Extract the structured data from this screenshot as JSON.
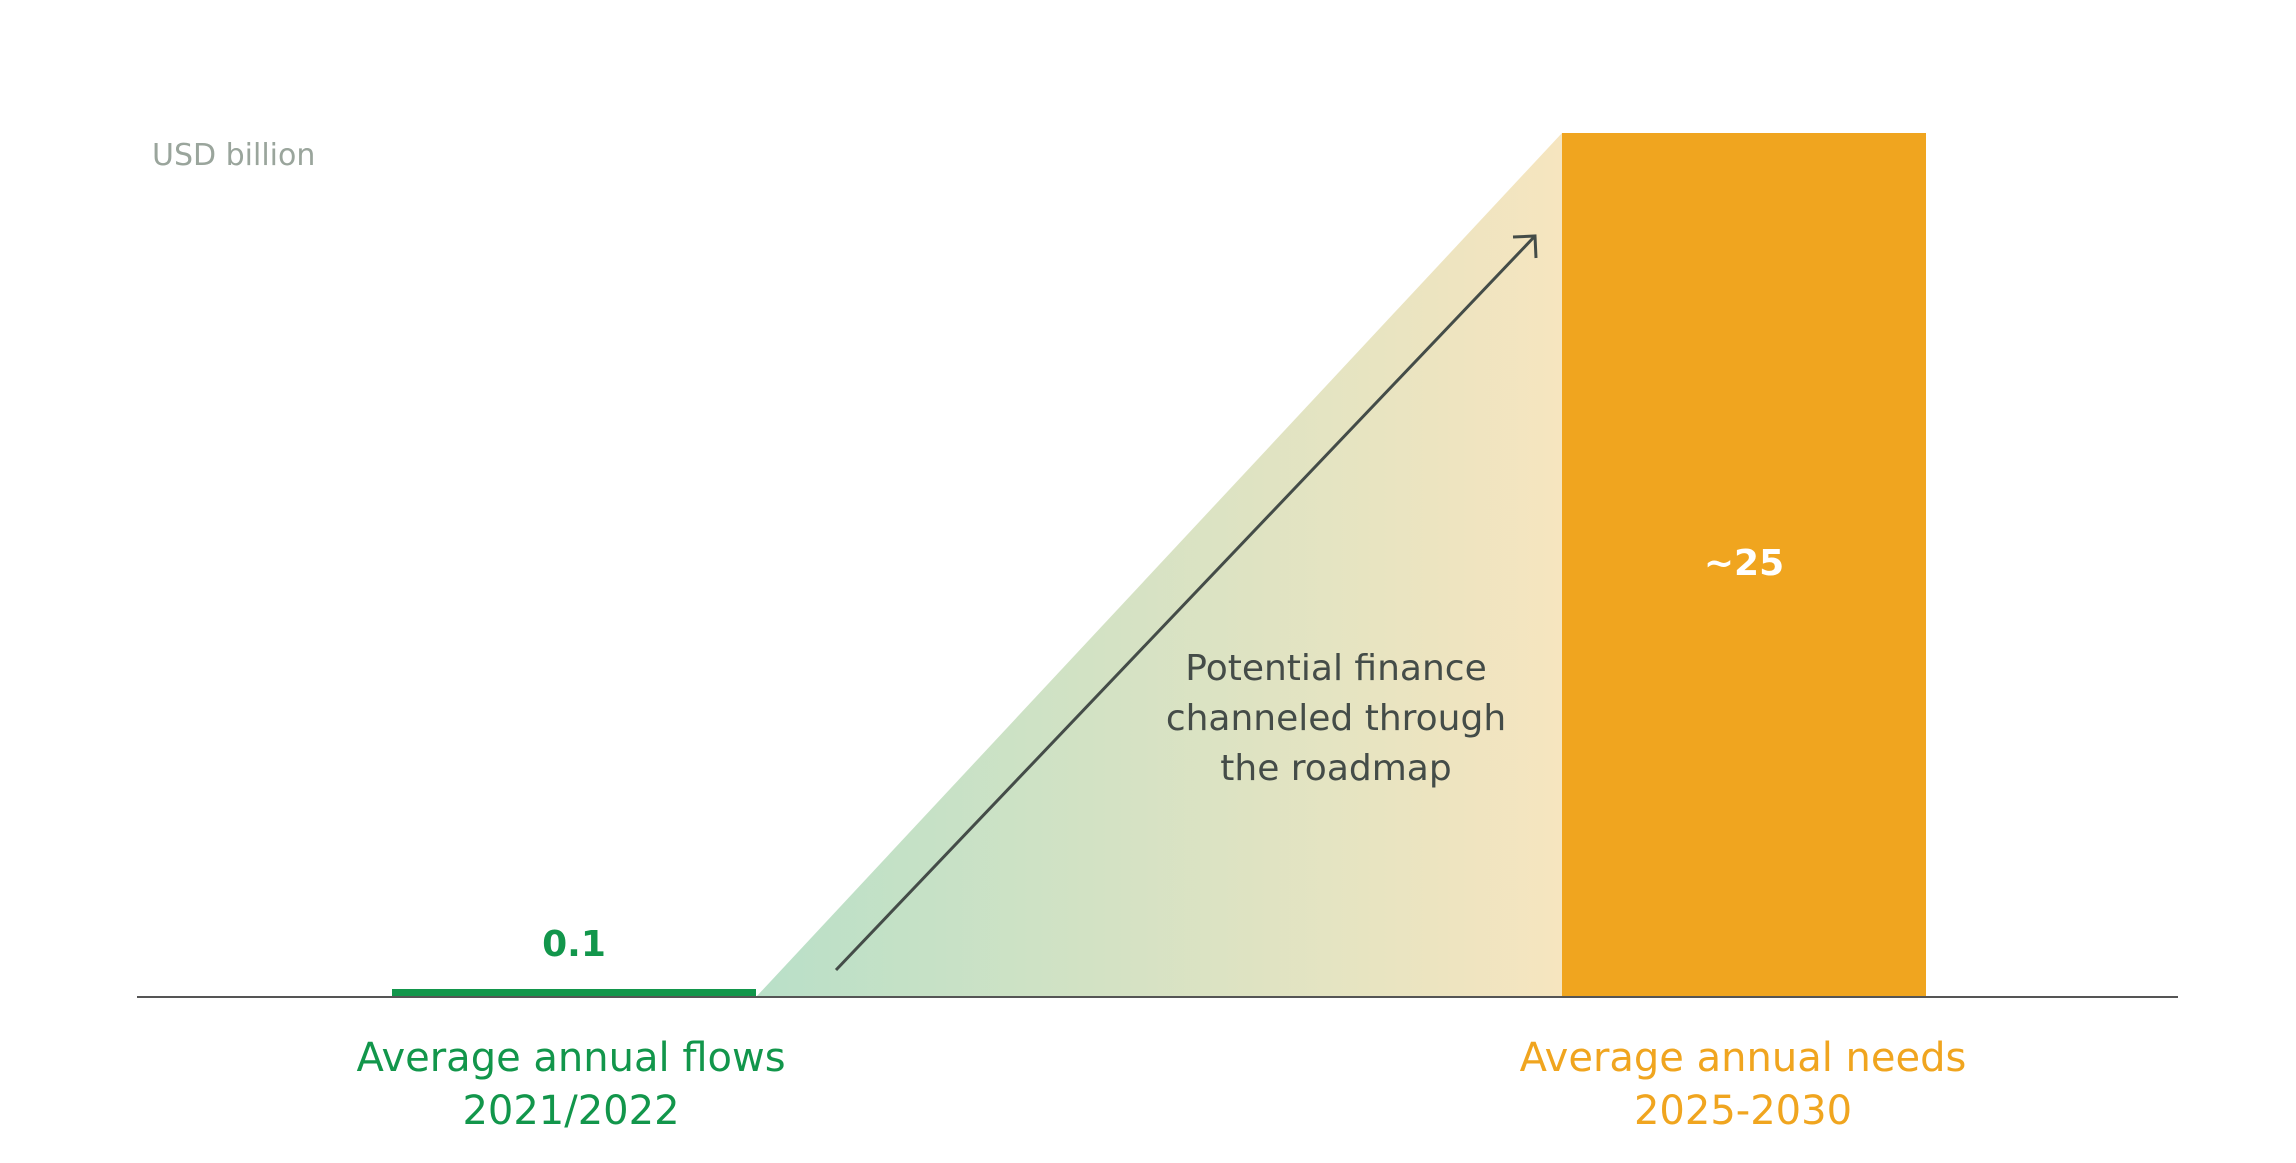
{
  "chart_data": {
    "type": "bar",
    "unit_label": "USD billion",
    "categories": [
      [
        "Average annual flows",
        "2021/2022"
      ],
      [
        "Average annual needs",
        "2025-2030"
      ]
    ],
    "values": [
      0.1,
      25
    ],
    "value_labels": [
      "0.1",
      "~25"
    ],
    "annotation": [
      "Potential finance",
      "channeled through",
      "the roadmap"
    ],
    "ylim": [
      0,
      25
    ],
    "grid": false,
    "legend": "none",
    "colors": {
      "flows": "#12964b",
      "needs": "#f0a51f",
      "gradient_start": "#b9e0c8",
      "gradient_end": "#f6e5bf",
      "axis": "#555555",
      "arrow": "#444c48"
    }
  }
}
